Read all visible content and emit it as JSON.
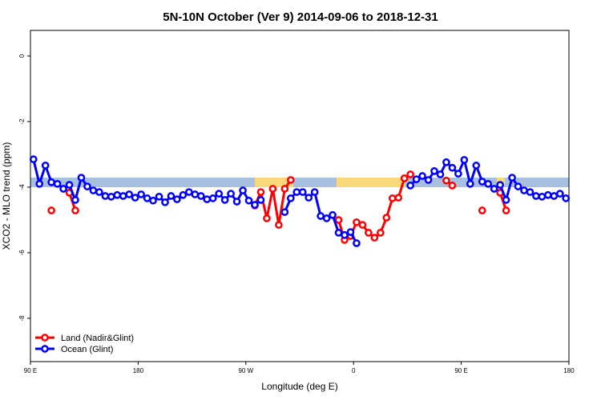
{
  "chart_data": {
    "type": "line",
    "title": "5N-10N October (Ver 9)   2014-09-06 to 2018-12-31",
    "x_label": "Longitude (deg E)",
    "y_label": "XCO2 - MLO trend (ppm)",
    "x": [
      92.5,
      97.5,
      102.5,
      107.5,
      112.5,
      117.5,
      122.5,
      127.5,
      132.5,
      137.5,
      142.5,
      147.5,
      152.5,
      157.5,
      162.5,
      167.5,
      172.5,
      177.5,
      182.5,
      187.5,
      192.5,
      197.5,
      202.5,
      207.5,
      212.5,
      217.5,
      222.5,
      227.5,
      232.5,
      237.5,
      242.5,
      247.5,
      252.5,
      257.5,
      262.5,
      267.5,
      272.5,
      277.5,
      282.5,
      287.5,
      292.5,
      297.5,
      302.5,
      307.5,
      312.5,
      317.5,
      322.5,
      327.5,
      332.5,
      337.5,
      342.5,
      347.5,
      352.5,
      357.5,
      362.5,
      367.5,
      372.5,
      377.5,
      382.5,
      387.5,
      392.5,
      397.5,
      402.5,
      407.5,
      412.5,
      417.5,
      422.5,
      427.5,
      432.5,
      437.5,
      442.5,
      447.5,
      452.5,
      457.5,
      462.5,
      467.5,
      472.5,
      477.5,
      482.5,
      487.5,
      492.5,
      497.5,
      502.5,
      507.5,
      512.5,
      517.5,
      522.5,
      527.5,
      532.5,
      537.5
    ],
    "series": [
      {
        "name": "Land (Nadir&Glint)",
        "color": "#ff0000",
        "values": [
          null,
          null,
          null,
          -4.71,
          null,
          null,
          -4.17,
          -4.71,
          null,
          null,
          null,
          null,
          null,
          null,
          null,
          null,
          null,
          null,
          null,
          null,
          null,
          null,
          null,
          null,
          null,
          null,
          null,
          null,
          null,
          null,
          null,
          null,
          null,
          null,
          null,
          null,
          null,
          -4.56,
          -4.15,
          -4.95,
          -4.05,
          -5.15,
          -4.05,
          -3.78,
          null,
          null,
          null,
          null,
          null,
          null,
          null,
          -5.0,
          -5.61,
          -5.49,
          -5.07,
          -5.15,
          -5.39,
          -5.54,
          -5.39,
          -4.93,
          -4.34,
          -4.32,
          -3.73,
          -3.61,
          null,
          null,
          null,
          null,
          null,
          -3.8,
          -3.95,
          null,
          null,
          null,
          null,
          -4.71,
          null,
          null,
          -4.17,
          -4.71,
          null,
          null,
          null,
          null,
          null,
          null,
          null,
          null,
          null,
          null
        ]
      },
      {
        "name": "Ocean (Glint)",
        "color": "#0000ff",
        "values": [
          -3.15,
          -3.9,
          -3.34,
          -3.85,
          -3.9,
          -4.05,
          -3.93,
          -4.39,
          -3.71,
          -3.98,
          -4.1,
          -4.15,
          -4.27,
          -4.29,
          -4.24,
          -4.27,
          -4.22,
          -4.32,
          -4.22,
          -4.34,
          -4.41,
          -4.29,
          -4.46,
          -4.27,
          -4.37,
          -4.24,
          -4.15,
          -4.22,
          -4.27,
          -4.37,
          -4.34,
          -4.2,
          -4.39,
          -4.2,
          -4.44,
          -4.1,
          -4.41,
          -4.54,
          -4.39,
          null,
          null,
          null,
          -4.76,
          -4.34,
          -4.15,
          -4.15,
          -4.32,
          -4.15,
          -4.88,
          -4.95,
          -4.85,
          -5.39,
          -5.46,
          -5.37,
          -5.71,
          null,
          null,
          null,
          null,
          null,
          null,
          null,
          null,
          -3.95,
          -3.76,
          -3.66,
          -3.78,
          -3.51,
          -3.61,
          -3.24,
          -3.41,
          -3.59,
          -3.17,
          -3.9,
          -3.34,
          -3.83,
          -3.9,
          -4.05,
          -3.93,
          -4.39,
          -3.71,
          -3.98,
          -4.1,
          -4.15,
          -4.27,
          -4.29,
          -4.24,
          -4.27,
          -4.2,
          -4.34
        ]
      }
    ],
    "xlim": [
      90,
      540
    ],
    "xticks": [
      {
        "value": 90,
        "label": "90 E"
      },
      {
        "value": 180,
        "label": "180"
      },
      {
        "value": 270,
        "label": "90 W"
      },
      {
        "value": 360,
        "label": "0"
      },
      {
        "value": 450,
        "label": "90 E"
      },
      {
        "value": 540,
        "label": "180"
      }
    ],
    "ylim": [
      -9.32,
      0.78
    ],
    "yticks": [
      0,
      -2,
      -4,
      -6,
      -8
    ],
    "legend": "bottom-left"
  }
}
